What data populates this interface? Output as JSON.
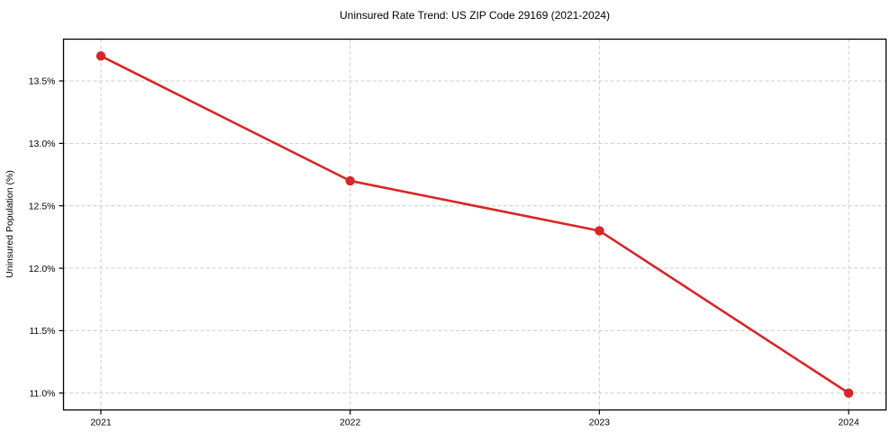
{
  "figure": {
    "title": "Uninsured Rate Trend: US ZIP Code 29169 (2021-2024)"
  },
  "chart_data": {
    "type": "line",
    "title": "Uninsured Rate Trend: US ZIP Code 29169 (2021-2024)",
    "xlabel": "",
    "ylabel": "Uninsured Population (%)",
    "x": [
      2021,
      2022,
      2023,
      2024
    ],
    "x_tick_labels": [
      "2021",
      "2022",
      "2023",
      "2024"
    ],
    "y_ticks": [
      11.0,
      11.5,
      12.0,
      12.5,
      13.0,
      13.5
    ],
    "y_tick_labels": [
      "11.0%",
      "11.5%",
      "12.0%",
      "12.5%",
      "13.0%",
      "13.5%"
    ],
    "series": [
      {
        "name": "Uninsured rate",
        "values": [
          13.7,
          12.7,
          12.3,
          11.0
        ],
        "color": "#d62728",
        "marker": "circle"
      }
    ],
    "xlim": [
      2020.85,
      2024.15
    ],
    "ylim": [
      10.865,
      13.835
    ],
    "grid": true,
    "grid_color": "#cccccc",
    "grid_style": "dashed",
    "legend_position": "none",
    "spine_color": "#000000",
    "background_color": "#ffffff"
  }
}
